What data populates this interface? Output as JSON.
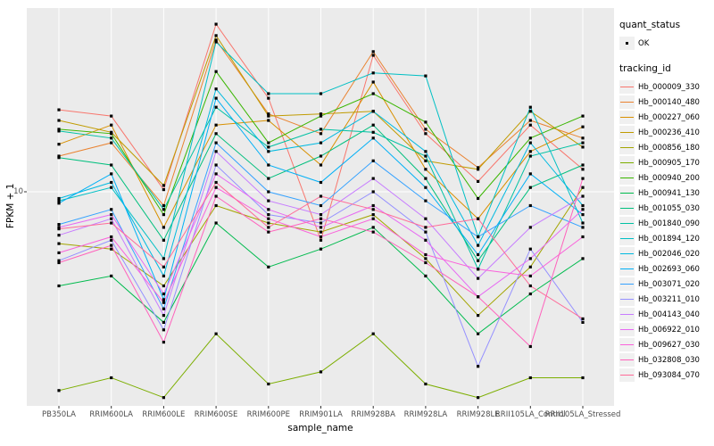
{
  "legend": {
    "quant_status_title": "quant_status",
    "quant_status_items": [
      {
        "label": "OK",
        "symbol": "black-square-point"
      }
    ],
    "tracking_id_title": "tracking_id"
  },
  "axes": {
    "y_tick_label": "10",
    "y_title": "FPKM + 1",
    "x_title": "sample_name"
  },
  "chart_data": {
    "type": "line",
    "title": "",
    "xlabel": "sample_name",
    "ylabel": "FPKM + 1",
    "y_scale": "log10",
    "ylim": [
      1.4,
      55
    ],
    "y_ticks": [
      10
    ],
    "grid": true,
    "legend_position": "right",
    "point_shape": "filled-square",
    "panel_background": "#EBEBEB",
    "gridline_color": "#FFFFFF",
    "point_color": "#000000",
    "categories": [
      "PB350LA",
      "RRIM600LA",
      "RRIM600LE",
      "RRIM600SE",
      "RRIM600PE",
      "RRIM901LA",
      "RRIM928BA",
      "RRIM928LA",
      "RRIM928LE",
      "RRII105LA_Control",
      "RRII105LA_Stressed"
    ],
    "series": [
      {
        "name": "Hb_000009_330",
        "color": "#F8766D",
        "values": [
          21.3,
          20.1,
          10.2,
          46.9,
          23.7,
          6.4,
          35.2,
          17.1,
          11.0,
          18.5,
          12.3
        ]
      },
      {
        "name": "Hb_000140_480",
        "color": "#EA8331",
        "values": [
          13.9,
          15.7,
          8.8,
          40.5,
          20.5,
          17.1,
          36.4,
          17.8,
          12.5,
          19.3,
          16.4
        ]
      },
      {
        "name": "Hb_000227_060",
        "color": "#D89000",
        "values": [
          15.5,
          18.5,
          7.2,
          18.5,
          19.3,
          12.8,
          27.5,
          12.3,
          7.8,
          14.5,
          18.2
        ]
      },
      {
        "name": "Hb_000236_410",
        "color": "#C09B00",
        "values": [
          19.3,
          17.3,
          10.6,
          42.2,
          20.1,
          20.5,
          21.0,
          13.3,
          12.3,
          21.0,
          15.1
        ]
      },
      {
        "name": "Hb_000856_180",
        "color": "#A3A500",
        "values": [
          6.2,
          5.9,
          4.2,
          8.8,
          7.5,
          6.9,
          8.1,
          5.4,
          3.2,
          5.0,
          10.4
        ]
      },
      {
        "name": "Hb_000905_170",
        "color": "#7CAE00",
        "values": [
          1.6,
          1.8,
          1.5,
          2.7,
          1.7,
          1.9,
          2.7,
          1.7,
          1.5,
          1.8,
          1.8
        ]
      },
      {
        "name": "Hb_000940_200",
        "color": "#39B600",
        "values": [
          17.8,
          17.1,
          8.1,
          30.3,
          15.7,
          20.1,
          24.7,
          19.0,
          9.4,
          16.4,
          20.1
        ]
      },
      {
        "name": "Hb_000941_130",
        "color": "#00BB4E",
        "values": [
          4.2,
          4.6,
          3.0,
          7.5,
          5.0,
          5.9,
          7.2,
          4.6,
          2.7,
          3.9,
          5.4
        ]
      },
      {
        "name": "Hb_001055_030",
        "color": "#00BF7D",
        "values": [
          13.7,
          12.8,
          6.4,
          17.1,
          11.3,
          13.9,
          18.5,
          11.3,
          5.3,
          10.4,
          12.8
        ]
      },
      {
        "name": "Hb_001840_090",
        "color": "#00C1A3",
        "values": [
          17.5,
          16.4,
          8.5,
          21.8,
          15.1,
          17.8,
          17.3,
          13.9,
          4.9,
          13.9,
          15.7
        ]
      },
      {
        "name": "Hb_001894_120",
        "color": "#00BFC4",
        "values": [
          9.2,
          10.4,
          5.4,
          39.8,
          24.7,
          24.7,
          29.9,
          29.1,
          6.6,
          21.8,
          7.5
        ]
      },
      {
        "name": "Hb_002046_020",
        "color": "#00BAE0",
        "values": [
          9.4,
          10.9,
          4.6,
          25.8,
          14.5,
          15.7,
          21.0,
          14.5,
          6.1,
          15.7,
          8.8
        ]
      },
      {
        "name": "Hb_002693_060",
        "color": "#00B0F6",
        "values": [
          9.0,
          11.8,
          3.7,
          23.7,
          12.8,
          10.9,
          16.4,
          10.4,
          5.6,
          11.8,
          8.1
        ]
      },
      {
        "name": "Hb_003071_020",
        "color": "#35A2FF",
        "values": [
          7.4,
          8.5,
          3.4,
          15.7,
          10.0,
          8.8,
          13.3,
          9.2,
          6.6,
          8.8,
          7.2
        ]
      },
      {
        "name": "Hb_003211_010",
        "color": "#9590FF",
        "values": [
          5.3,
          6.4,
          2.8,
          12.8,
          8.1,
          7.5,
          10.0,
          6.9,
          2.0,
          5.9,
          3.0
        ]
      },
      {
        "name": "Hb_004143_040",
        "color": "#C77CFF",
        "values": [
          6.7,
          7.8,
          3.2,
          14.5,
          9.2,
          8.1,
          11.3,
          7.8,
          4.5,
          7.2,
          9.6
        ]
      },
      {
        "name": "Hb_006922_010",
        "color": "#E76BF3",
        "values": [
          7.2,
          8.1,
          3.9,
          11.8,
          8.5,
          7.2,
          8.8,
          6.4,
          3.8,
          5.4,
          8.5
        ]
      },
      {
        "name": "Hb_009627_030",
        "color": "#FA62DB",
        "values": [
          5.7,
          6.6,
          3.6,
          10.4,
          7.8,
          6.6,
          7.8,
          5.6,
          4.9,
          4.6,
          6.6
        ]
      },
      {
        "name": "Hb_032808_030",
        "color": "#FF62BC",
        "values": [
          5.2,
          6.1,
          2.5,
          9.6,
          6.9,
          7.8,
          6.9,
          5.2,
          3.8,
          2.4,
          11.3
        ]
      },
      {
        "name": "Hb_093084_070",
        "color": "#FF6A98",
        "values": [
          7.1,
          7.5,
          5.0,
          10.9,
          7.2,
          9.6,
          8.5,
          7.2,
          7.8,
          4.2,
          3.1
        ]
      }
    ]
  }
}
